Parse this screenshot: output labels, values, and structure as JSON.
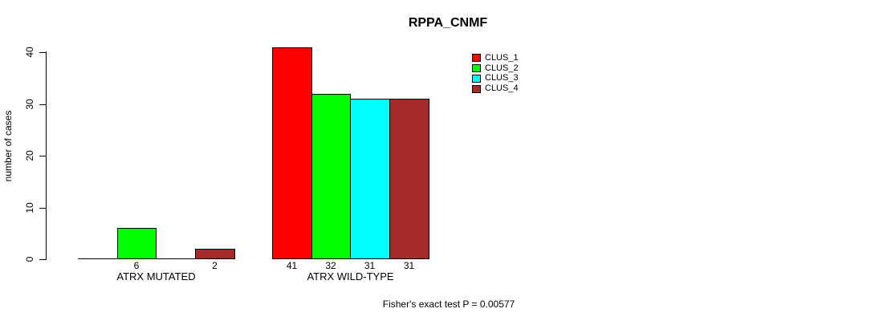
{
  "page": {
    "background": "#FFFFFF",
    "text_color": "#000000"
  },
  "chart_data": {
    "type": "bar",
    "title": "RPPA_CNMF",
    "ylabel": "number of cases",
    "xlabel": "",
    "categories": [
      "ATRX MUTATED",
      "ATRX WILD-TYPE"
    ],
    "series": [
      {
        "name": "CLUS_1",
        "color": "#FF0000",
        "values": [
          0,
          41
        ]
      },
      {
        "name": "CLUS_2",
        "color": "#00FF00",
        "values": [
          6,
          32
        ]
      },
      {
        "name": "CLUS_3",
        "color": "#00FFFF",
        "values": [
          0,
          31
        ]
      },
      {
        "name": "CLUS_4",
        "color": "#A52A2A",
        "values": [
          2,
          31
        ]
      }
    ],
    "bar_value_labels_shown": [
      "6",
      "2",
      "41",
      "32",
      "31",
      "31"
    ],
    "yticks": [
      0,
      10,
      20,
      30,
      40
    ],
    "ylim": [
      0,
      41.5
    ],
    "grid": false,
    "legend": {
      "position": "inside-top-right",
      "entries": [
        "CLUS_1",
        "CLUS_2",
        "CLUS_3",
        "CLUS_4"
      ]
    },
    "annotation": "Fisher's exact test P = 0.00577",
    "axis_color": "#000000"
  }
}
